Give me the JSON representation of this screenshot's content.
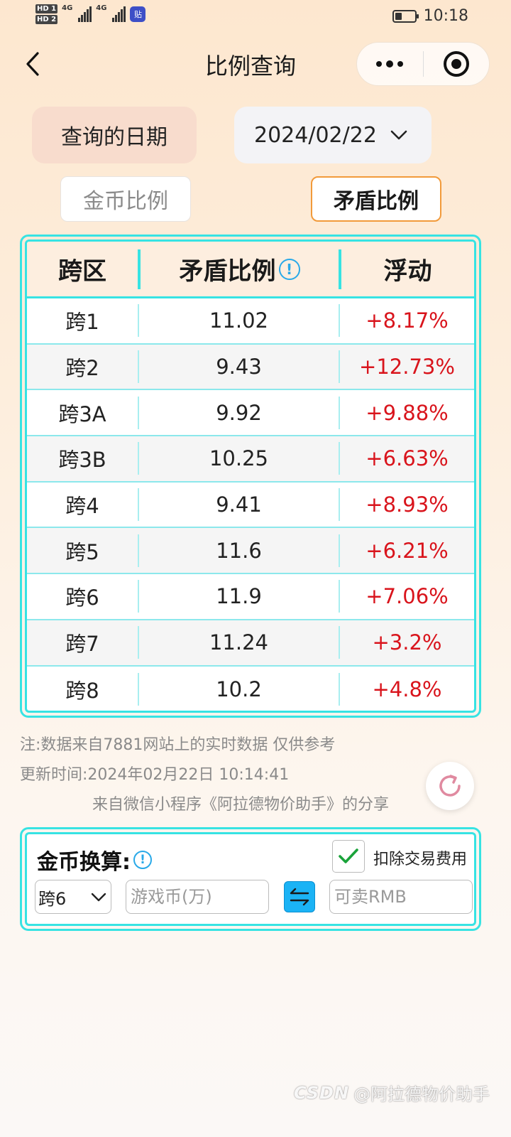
{
  "status_bar": {
    "hd1": "HD 1",
    "hd2": "HD 2",
    "net1": "4G",
    "net2": "4G",
    "app_badge": "贴",
    "battery_level": 0.35,
    "time": "10:18"
  },
  "nav": {
    "title": "比例查询"
  },
  "date_query": {
    "label": "查询的日期",
    "value": "2024/02/22"
  },
  "tabs": [
    {
      "label": "金币比例",
      "active": false
    },
    {
      "label": "矛盾比例",
      "active": true
    }
  ],
  "table": {
    "headers": [
      "跨区",
      "矛盾比例",
      "浮动"
    ],
    "info_glyph": "!",
    "rows": [
      {
        "zone": "跨1",
        "ratio": "11.02",
        "change": "+8.17%"
      },
      {
        "zone": "跨2",
        "ratio": "9.43",
        "change": "+12.73%"
      },
      {
        "zone": "跨3A",
        "ratio": "9.92",
        "change": "+9.88%"
      },
      {
        "zone": "跨3B",
        "ratio": "10.25",
        "change": "+6.63%"
      },
      {
        "zone": "跨4",
        "ratio": "9.41",
        "change": "+8.93%"
      },
      {
        "zone": "跨5",
        "ratio": "11.6",
        "change": "+6.21%"
      },
      {
        "zone": "跨6",
        "ratio": "11.9",
        "change": "+7.06%"
      },
      {
        "zone": "跨7",
        "ratio": "11.24",
        "change": "+3.2%"
      },
      {
        "zone": "跨8",
        "ratio": "10.2",
        "change": "+4.8%"
      }
    ]
  },
  "notes": {
    "source": "注:数据来自7881网站上的实时数据 仅供参考",
    "updated": "更新时间:2024年02月22日 10:14:41",
    "share": "来自微信小程序《阿拉德物价助手》的分享"
  },
  "converter": {
    "title": "金币换算:",
    "info_glyph": "!",
    "fee_label": "扣除交易费用",
    "fee_checked": true,
    "server_value": "跨6",
    "coin_placeholder": "游戏币(万)",
    "rmb_placeholder": "可卖RMB"
  },
  "watermark": {
    "logo": "CSDN",
    "text": "@阿拉德物价助手"
  },
  "colors": {
    "accent_cyan": "#37e3e3",
    "tab_active_border": "#f29a3a",
    "positive_change": "#d9141c",
    "swap_button": "#1bb3f5"
  }
}
